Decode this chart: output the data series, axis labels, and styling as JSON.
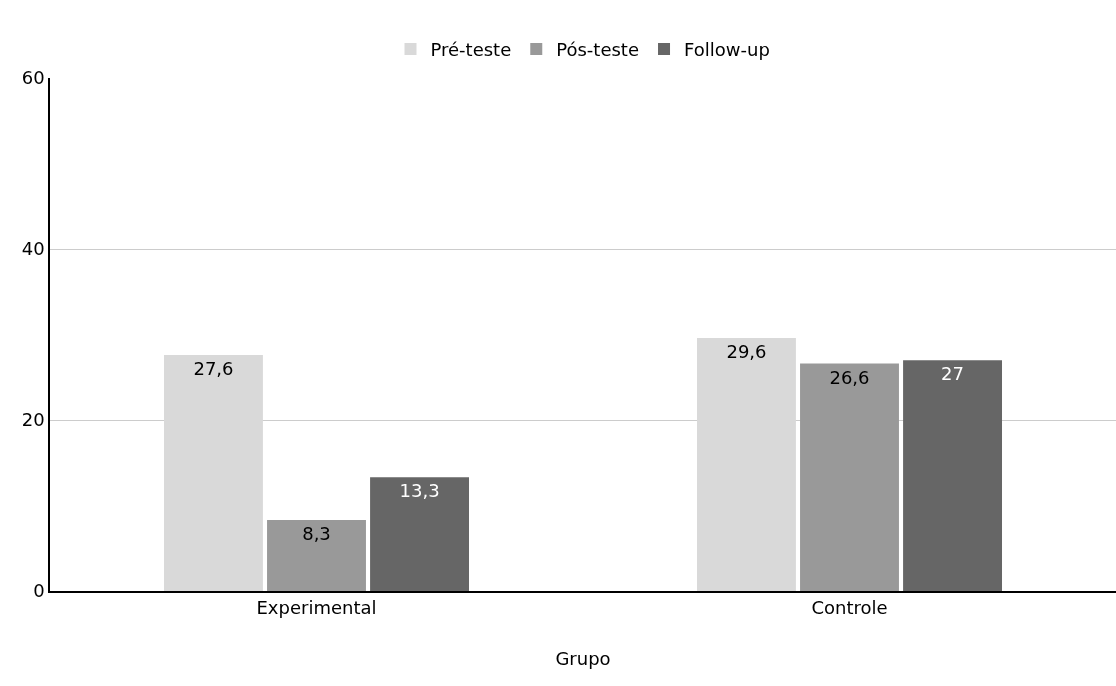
{
  "chart_data": {
    "type": "bar",
    "xlabel": "Grupo",
    "categories": [
      "Experimental",
      "Controle"
    ],
    "series": [
      {
        "name": "Pré-teste",
        "color": "#d9d9d9",
        "values": [
          27.6,
          29.6
        ],
        "value_labels": [
          "27,6",
          "29,6"
        ]
      },
      {
        "name": "Pós-teste",
        "color": "#999999",
        "values": [
          8.3,
          26.6
        ],
        "value_labels": [
          "8,3",
          "26,6"
        ]
      },
      {
        "name": "Follow-up",
        "color": "#666666",
        "values": [
          13.3,
          27
        ],
        "value_labels": [
          "13,3",
          "27"
        ]
      }
    ],
    "ylim": [
      0,
      60
    ],
    "yticks": [
      0,
      20,
      40,
      60
    ],
    "grid": "y",
    "legend": "top"
  }
}
